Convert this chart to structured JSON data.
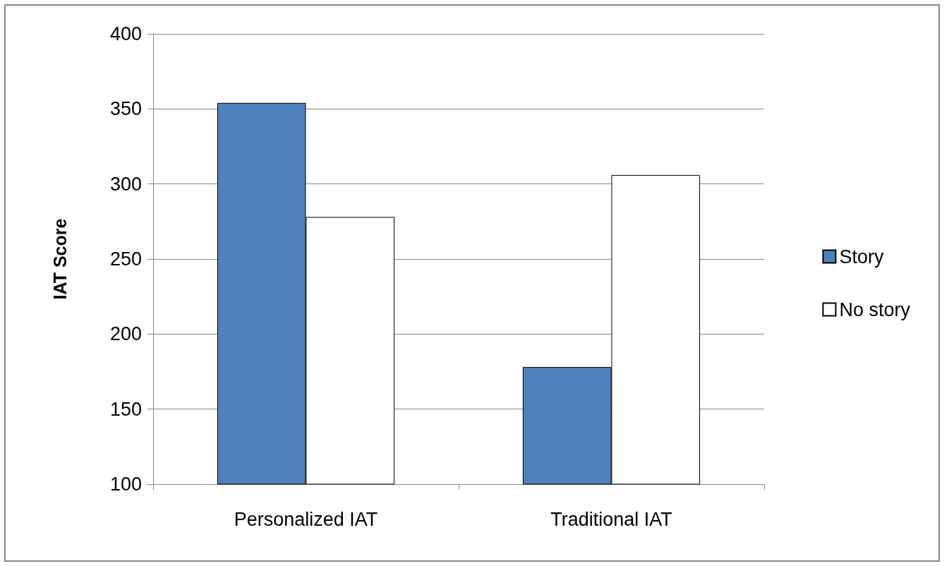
{
  "chart_data": {
    "type": "bar",
    "ylabel": "IAT Score",
    "categories": [
      "Personalized IAT",
      "Traditional IAT"
    ],
    "series": [
      {
        "name": "Story",
        "color": "#4f81bd",
        "values": [
          354,
          178
        ]
      },
      {
        "name": "No story",
        "color": "#ffffff",
        "values": [
          278,
          306
        ]
      }
    ],
    "ylim": [
      100,
      400
    ],
    "yticks": [
      100,
      150,
      200,
      250,
      300,
      350,
      400
    ],
    "grid": "y",
    "legend": "right"
  }
}
